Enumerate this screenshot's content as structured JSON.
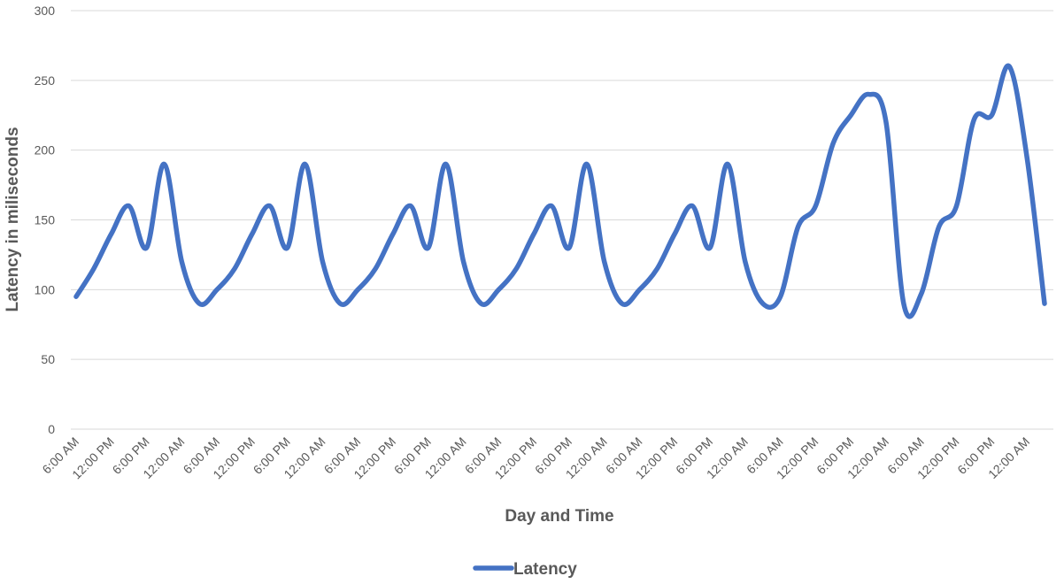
{
  "chart_data": {
    "type": "line",
    "x_label": "Day and Time",
    "y_label": "Latency in miliseconds",
    "categories": [
      "6:00 AM",
      null,
      "12:00 PM",
      null,
      "6:00 PM",
      null,
      "12:00 AM",
      null,
      "6:00 AM",
      null,
      "12:00 PM",
      null,
      "6:00 PM",
      null,
      "12:00 AM",
      null,
      "6:00 AM",
      null,
      "12:00 PM",
      null,
      "6:00 PM",
      null,
      "12:00 AM",
      null,
      "6:00 AM",
      null,
      "12:00 PM",
      null,
      "6:00 PM",
      null,
      "12:00 AM",
      null,
      "6:00 AM",
      null,
      "12:00 PM",
      null,
      "6:00 PM",
      null,
      "12:00 AM",
      null,
      "6:00 AM",
      null,
      "12:00 PM",
      null,
      "6:00 PM",
      null,
      "12:00 AM",
      null,
      "6:00 AM",
      null,
      "12:00 PM",
      null,
      "6:00 PM",
      null,
      "12:00 AM",
      null
    ],
    "series": [
      {
        "name": "Latency",
        "color": "#4472c4",
        "values": [
          95,
          115,
          140,
          160,
          130,
          190,
          120,
          90,
          100,
          115,
          140,
          160,
          130,
          190,
          120,
          90,
          100,
          115,
          140,
          160,
          130,
          190,
          120,
          90,
          100,
          115,
          140,
          160,
          130,
          190,
          120,
          90,
          100,
          115,
          140,
          160,
          130,
          190,
          120,
          90,
          95,
          145,
          160,
          205,
          225,
          240,
          220,
          90,
          97,
          145,
          160,
          222,
          225,
          260,
          195,
          90
        ]
      }
    ],
    "ylim": [
      0,
      300
    ],
    "yticks": [
      0,
      50,
      100,
      150,
      200,
      250,
      300
    ],
    "grid": true,
    "smooth": true,
    "legend": "bottom"
  }
}
